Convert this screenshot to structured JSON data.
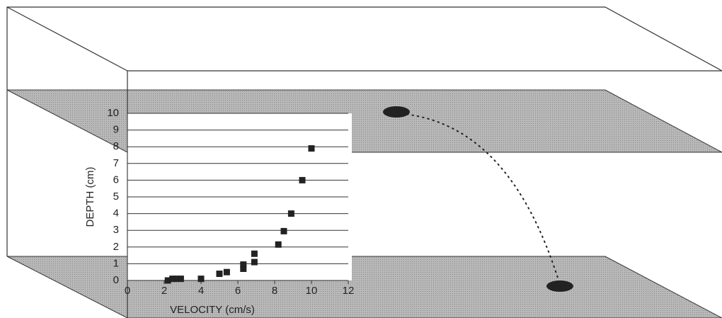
{
  "chart_data": {
    "type": "scatter",
    "x_label": "VELOCITY (cm/s)",
    "y_label": "DEPTH (cm)",
    "x": [
      2.2,
      2.45,
      2.65,
      2.9,
      4.0,
      5.0,
      5.4,
      6.3,
      6.3,
      6.9,
      6.9,
      8.2,
      8.5,
      8.9,
      9.5,
      10.0
    ],
    "values": [
      0,
      0.1,
      0.1,
      0.1,
      0.1,
      0.4,
      0.5,
      0.7,
      0.95,
      1.1,
      1.6,
      2.15,
      2.95,
      4.0,
      6.0,
      7.9
    ],
    "color": "#222222",
    "xlim": [
      0,
      12
    ],
    "xticks": [
      0,
      2,
      4,
      6,
      8,
      10,
      12
    ],
    "ylim": [
      0,
      10
    ],
    "yticks": [
      0,
      1,
      2,
      3,
      4,
      5,
      6,
      7,
      8,
      9,
      10
    ],
    "grid": true
  }
}
